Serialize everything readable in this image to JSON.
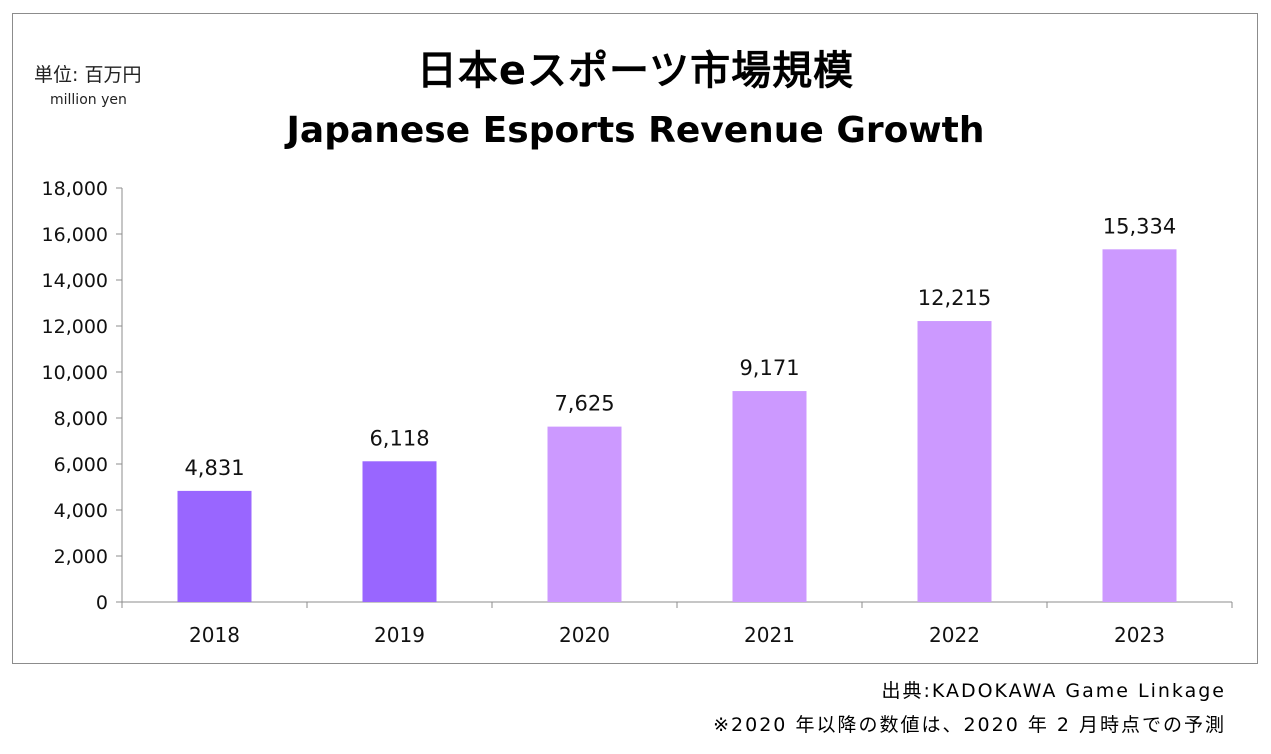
{
  "unit": {
    "jp": "単位: 百万円",
    "en": "million yen"
  },
  "footer": {
    "source": "出典:KADOKAWA Game Linkage",
    "note": "※2020 年以降の数値は、2020 年 2 月時点での予測"
  },
  "colors": {
    "actual": "#9966ff",
    "forecast": "#cc99ff",
    "axis": "#8c8c8c"
  },
  "chart_data": {
    "type": "bar",
    "title": "日本eスポーツ市場規模",
    "subtitle": "Japanese Esports Revenue Growth",
    "xlabel": "",
    "ylabel": "",
    "categories": [
      "2018",
      "2019",
      "2020",
      "2021",
      "2022",
      "2023"
    ],
    "values": [
      4831,
      6118,
      7625,
      9171,
      12215,
      15334
    ],
    "data_labels": [
      "4,831",
      "6,118",
      "7,625",
      "9,171",
      "12,215",
      "15,334"
    ],
    "bar_kinds": [
      "actual",
      "actual",
      "forecast",
      "forecast",
      "forecast",
      "forecast"
    ],
    "ylim": [
      0,
      18000
    ],
    "yticks": [
      0,
      2000,
      4000,
      6000,
      8000,
      10000,
      12000,
      14000,
      16000,
      18000
    ],
    "ytick_labels": [
      "0",
      "2,000",
      "4,000",
      "6,000",
      "8,000",
      "10,000",
      "12,000",
      "14,000",
      "16,000",
      "18,000"
    ],
    "grid": false,
    "legend": "none"
  }
}
